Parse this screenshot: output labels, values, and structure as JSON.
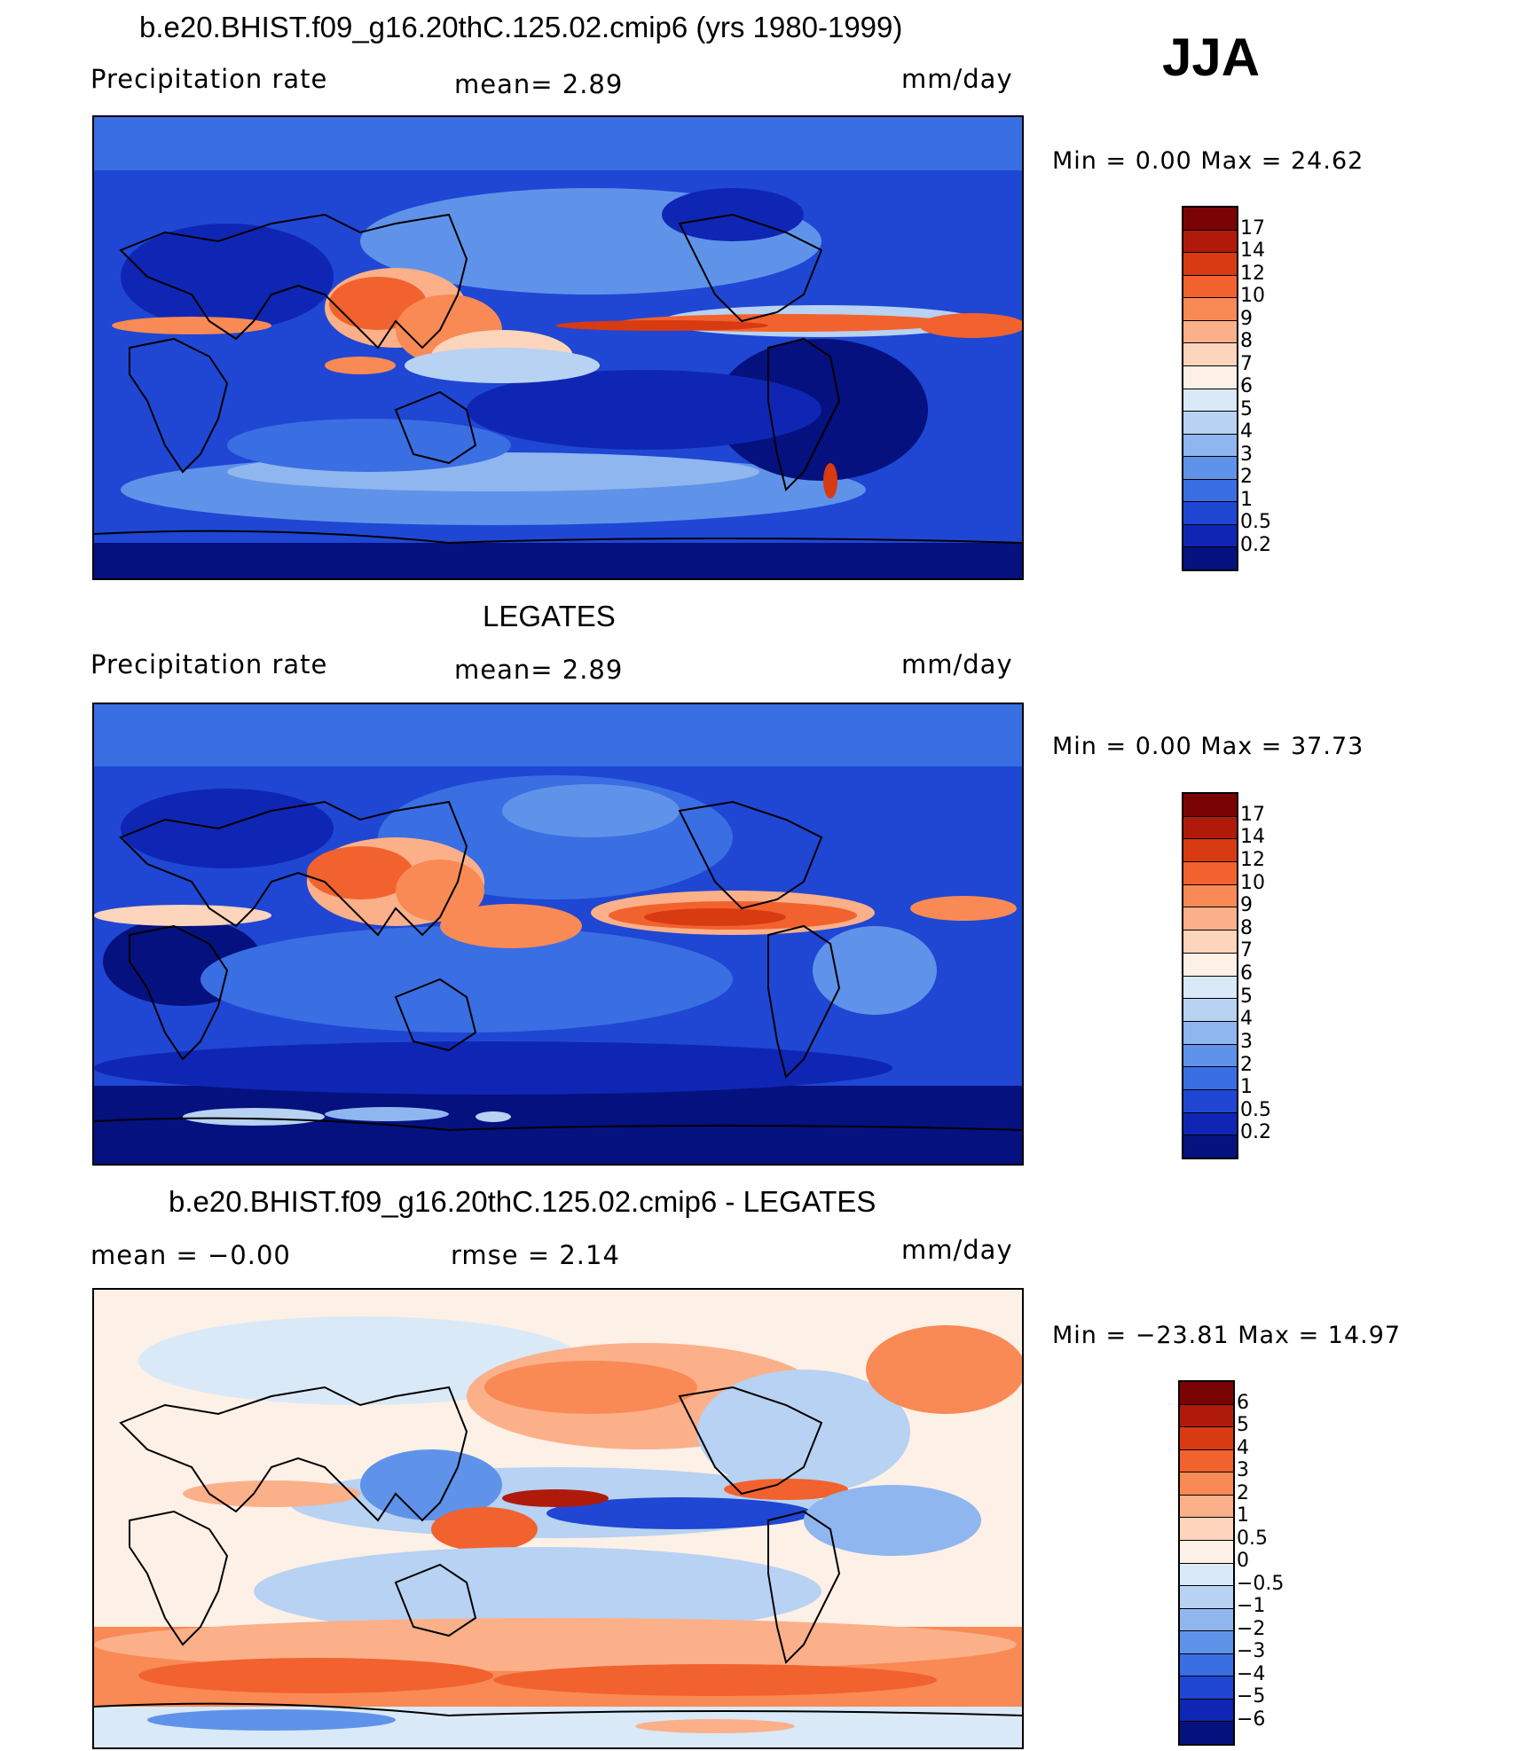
{
  "season": "JJA",
  "panels": [
    {
      "title": "b.e20.BHIST.f09_g16.20thC.125.02.cmip6 (yrs 1980-1999)",
      "left_label": "Precipitation  rate",
      "center_label": "mean=    2.89",
      "units": "mm/day",
      "minmax": "Min  =     0.00  Max  =    24.62",
      "colorbar_labels": [
        "17",
        "14",
        "12",
        "10",
        "9",
        "8",
        "7",
        "6",
        "5",
        "4",
        "3",
        "2",
        "1",
        "0.5",
        "0.2"
      ],
      "colorbar_colors": [
        "#7a0403",
        "#b01a0b",
        "#d83a12",
        "#f2622e",
        "#f98a55",
        "#fbb08a",
        "#fdd4bc",
        "#fdf0e6",
        "#d9e9f7",
        "#b7d2f2",
        "#8fb6ee",
        "#5f93e9",
        "#3a6ee3",
        "#1f47d3",
        "#0f26b4",
        "#05117e"
      ]
    },
    {
      "title": "LEGATES",
      "left_label": "Precipitation  rate",
      "center_label": "mean=    2.89",
      "units": "mm/day",
      "minmax": "Min  =     0.00  Max  =    37.73",
      "colorbar_labels": [
        "17",
        "14",
        "12",
        "10",
        "9",
        "8",
        "7",
        "6",
        "5",
        "4",
        "3",
        "2",
        "1",
        "0.5",
        "0.2"
      ],
      "colorbar_colors": [
        "#7a0403",
        "#b01a0b",
        "#d83a12",
        "#f2622e",
        "#f98a55",
        "#fbb08a",
        "#fdd4bc",
        "#fdf0e6",
        "#d9e9f7",
        "#b7d2f2",
        "#8fb6ee",
        "#5f93e9",
        "#3a6ee3",
        "#1f47d3",
        "#0f26b4",
        "#05117e"
      ]
    },
    {
      "title": "b.e20.BHIST.f09_g16.20thC.125.02.cmip6 - LEGATES",
      "left_label": "mean  =    −0.00",
      "center_label": "rmse  =     2.14",
      "units": "mm/day",
      "minmax": "Min  = −23.81  Max  =    14.97",
      "colorbar_labels": [
        "6",
        "5",
        "4",
        "3",
        "2",
        "1",
        "0.5",
        "0",
        "−0.5",
        "−1",
        "−2",
        "−3",
        "−4",
        "−5",
        "−6"
      ],
      "colorbar_colors": [
        "#7a0403",
        "#b01a0b",
        "#d83a12",
        "#f2622e",
        "#f98a55",
        "#fbb08a",
        "#fdd4bc",
        "#fdf0e6",
        "#d9e9f7",
        "#b7d2f2",
        "#8fb6ee",
        "#5f93e9",
        "#3a6ee3",
        "#1f47d3",
        "#0f26b4",
        "#05117e"
      ]
    }
  ]
}
